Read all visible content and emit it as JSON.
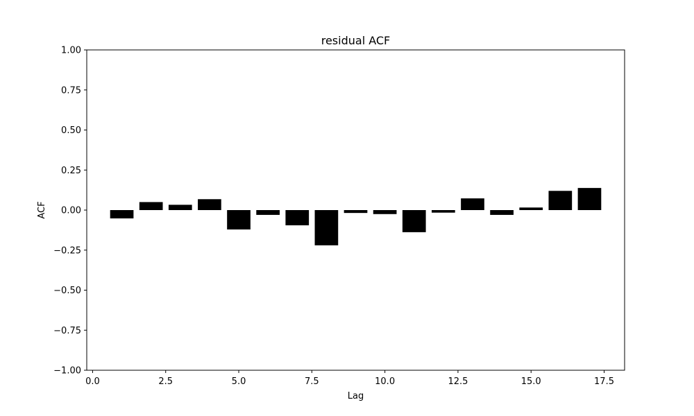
{
  "chart_data": {
    "type": "bar",
    "title": "residual ACF",
    "xlabel": "Lag",
    "ylabel": "ACF",
    "xlim": [
      -0.2,
      18.2
    ],
    "ylim": [
      -1.0,
      1.0
    ],
    "grid": false,
    "bar_width": 0.8,
    "bar_color": "#000000",
    "x": [
      1,
      2,
      3,
      4,
      5,
      6,
      7,
      8,
      9,
      10,
      11,
      12,
      13,
      14,
      15,
      16,
      17
    ],
    "values": [
      -0.052,
      0.05,
      0.033,
      0.068,
      -0.121,
      -0.03,
      -0.095,
      -0.22,
      -0.018,
      -0.025,
      -0.138,
      -0.016,
      0.073,
      -0.03,
      0.016,
      0.12,
      0.138
    ],
    "x_ticks": [
      {
        "value": 0.0,
        "label": "0.0"
      },
      {
        "value": 2.5,
        "label": "2.5"
      },
      {
        "value": 5.0,
        "label": "5.0"
      },
      {
        "value": 7.5,
        "label": "7.5"
      },
      {
        "value": 10.0,
        "label": "10.0"
      },
      {
        "value": 12.5,
        "label": "12.5"
      },
      {
        "value": 15.0,
        "label": "15.0"
      },
      {
        "value": 17.5,
        "label": "17.5"
      }
    ],
    "y_ticks": [
      {
        "value": 1.0,
        "label": "1.00"
      },
      {
        "value": 0.75,
        "label": "0.75"
      },
      {
        "value": 0.5,
        "label": "0.50"
      },
      {
        "value": 0.25,
        "label": "0.25"
      },
      {
        "value": 0.0,
        "label": "0.00"
      },
      {
        "value": -0.25,
        "label": "−0.25"
      },
      {
        "value": -0.5,
        "label": "−0.50"
      },
      {
        "value": -0.75,
        "label": "−0.75"
      },
      {
        "value": -1.0,
        "label": "−1.00"
      }
    ]
  }
}
